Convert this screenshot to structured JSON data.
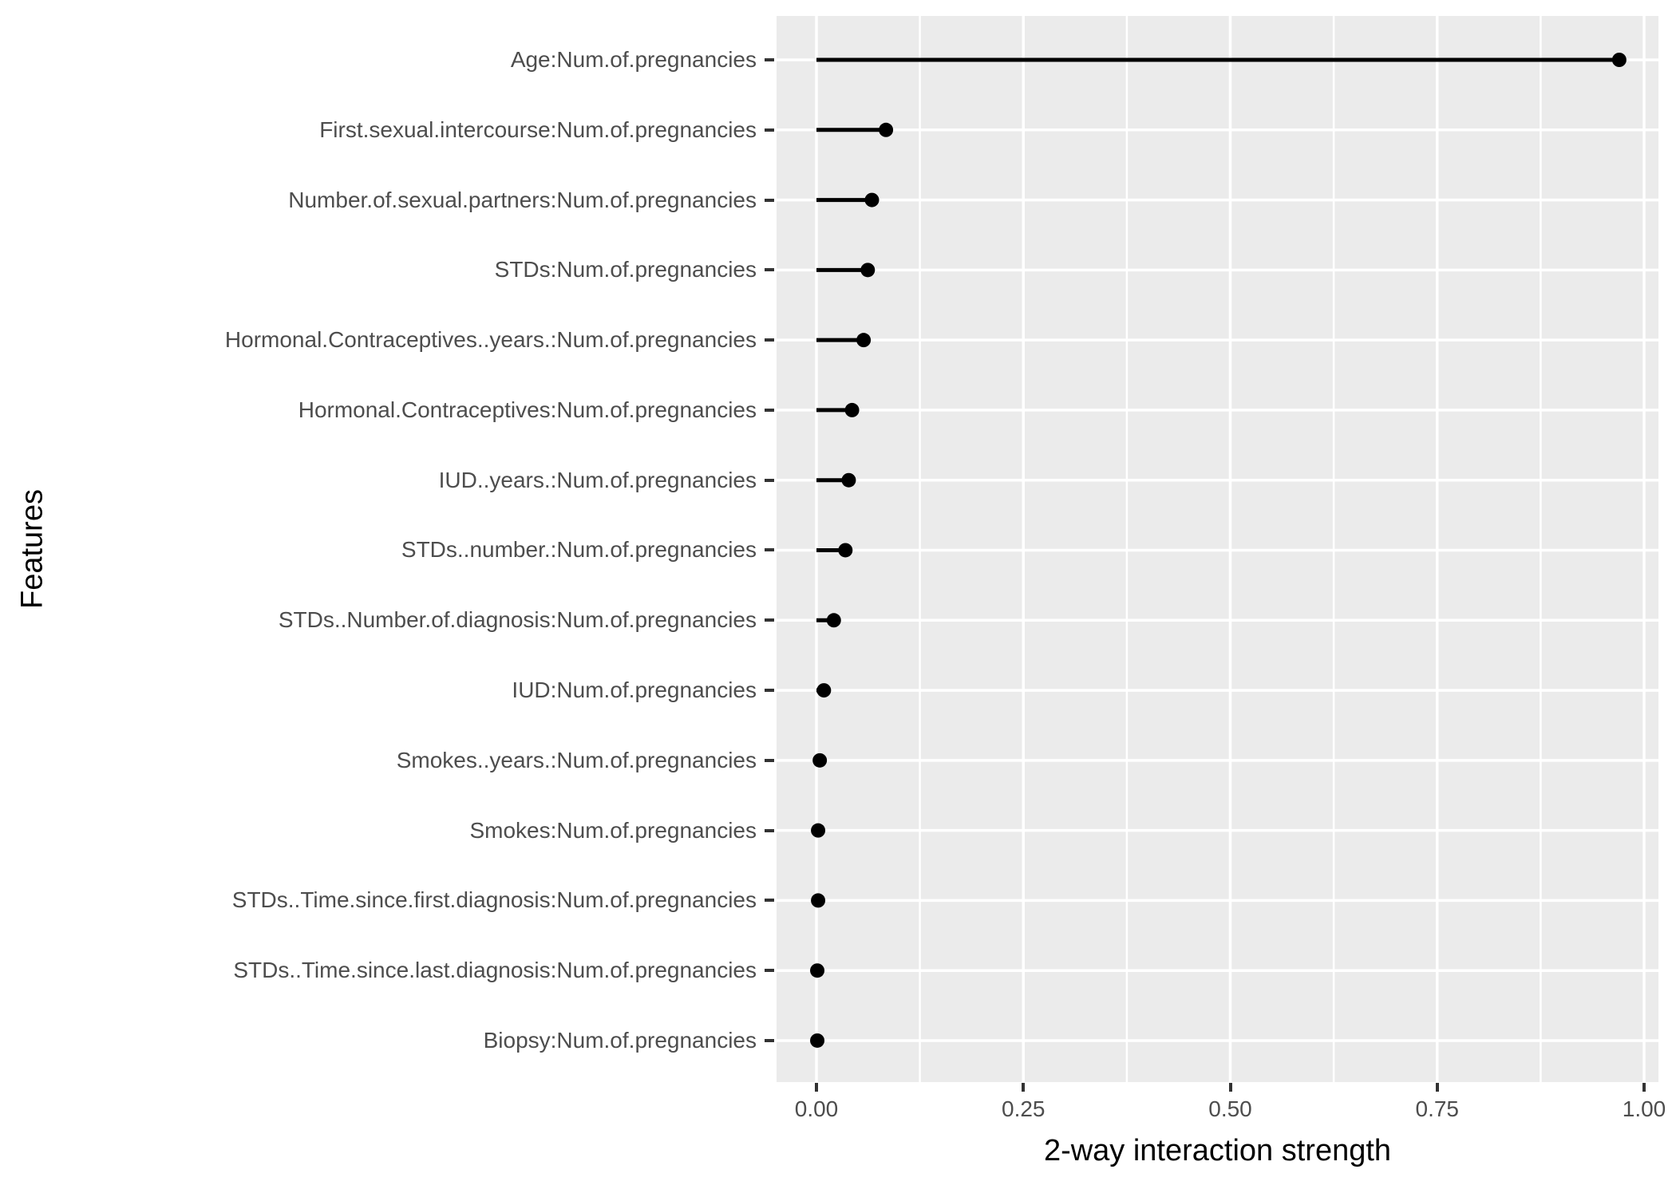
{
  "chart_data": {
    "type": "scatter",
    "variant": "lollipop",
    "orientation": "horizontal",
    "title": "",
    "xlabel": "2-way interaction strength",
    "ylabel": "Features",
    "categories": [
      "Age:Num.of.pregnancies",
      "First.sexual.intercourse:Num.of.pregnancies",
      "Number.of.sexual.partners:Num.of.pregnancies",
      "STDs:Num.of.pregnancies",
      "Hormonal.Contraceptives..years.:Num.of.pregnancies",
      "Hormonal.Contraceptives:Num.of.pregnancies",
      "IUD..years.:Num.of.pregnancies",
      "STDs..number.:Num.of.pregnancies",
      "STDs..Number.of.diagnosis:Num.of.pregnancies",
      "IUD:Num.of.pregnancies",
      "Smokes..years.:Num.of.pregnancies",
      "Smokes:Num.of.pregnancies",
      "STDs..Time.since.first.diagnosis:Num.of.pregnancies",
      "STDs..Time.since.last.diagnosis:Num.of.pregnancies",
      "Biopsy:Num.of.pregnancies"
    ],
    "values": [
      0.97,
      0.084,
      0.067,
      0.062,
      0.057,
      0.043,
      0.039,
      0.035,
      0.021,
      0.009,
      0.004,
      0.002,
      0.002,
      0.001,
      0.001
    ],
    "x_tick_labels": [
      "0.00",
      "0.25",
      "0.50",
      "0.75",
      "1.00"
    ],
    "x_tick_values": [
      0,
      0.25,
      0.5,
      0.75,
      1.0
    ],
    "x_minor_tick_values": [
      0.125,
      0.375,
      0.625,
      0.875
    ],
    "xlim": [
      -0.048,
      1.017
    ],
    "grid": {
      "major": true,
      "minor_vertical": true,
      "minor_horizontal": false
    },
    "legend_position": "none",
    "colors": {
      "panel_background": "#EBEBEB",
      "gridline": "#FFFFFF",
      "point": "#000000",
      "stem": "#000000",
      "axis_text": "#4D4D4D",
      "axis_title": "#000000",
      "tick_mark": "#333333"
    }
  }
}
